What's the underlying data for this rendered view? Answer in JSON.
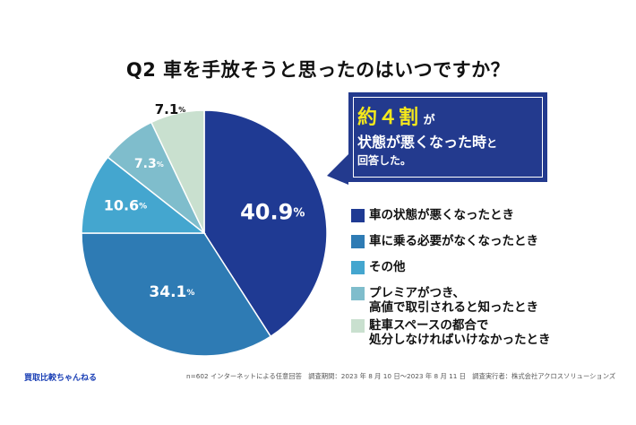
{
  "title": "Q2  車を手放そうと思ったのはいつですか？",
  "chart_data": {
    "type": "pie",
    "title": "Q2  車を手放そうと思ったのはいつですか？",
    "unit": "%",
    "start_angle": "12 o'clock",
    "direction": "clockwise",
    "slices": [
      {
        "label": "車の状態が悪くなったとき",
        "value": 40.9,
        "value_text": "40.9",
        "color": "#1f3a93"
      },
      {
        "label": "車に乗る必要がなくなったとき",
        "value": 34.1,
        "value_text": "34.1",
        "color": "#2e7bb4"
      },
      {
        "label": "その他",
        "value": 10.6,
        "value_text": "10.6",
        "color": "#44a6cf"
      },
      {
        "label": "プレミアがつき、高値で取引されると知ったとき",
        "value": 7.3,
        "value_text": "7.3",
        "color": "#7fbdcc"
      },
      {
        "label": "駐車スペースの都合で処分しなければいけなかったとき",
        "value": 7.1,
        "value_text": "7.1",
        "color": "#c9e0cf"
      }
    ],
    "legend_position": "right"
  },
  "callout": {
    "highlight": "約４割",
    "line1_suffix": "が",
    "line2": "状態が悪くなった時",
    "line2_suffix": "と",
    "line3": "回答した。"
  },
  "legend": [
    {
      "line1": "車の状態が悪くなったとき",
      "line2": ""
    },
    {
      "line1": "車に乗る必要がなくなったとき",
      "line2": ""
    },
    {
      "line1": "その他",
      "line2": ""
    },
    {
      "line1": "プレミアがつき、",
      "line2": "高値で取引されると知ったとき"
    },
    {
      "line1": "駐車スペースの都合で",
      "line2": "処分しなければいけなかったとき"
    }
  ],
  "percent_sign": "%",
  "footer": {
    "brand": "買取比較ちゃんねる",
    "note": "n=602 インターネットによる任意回答　調査期間：2023 年 8 月 10 日〜2023 年 8 月 11 日　調査実行者：株式会社アクロスソリューションズ"
  }
}
